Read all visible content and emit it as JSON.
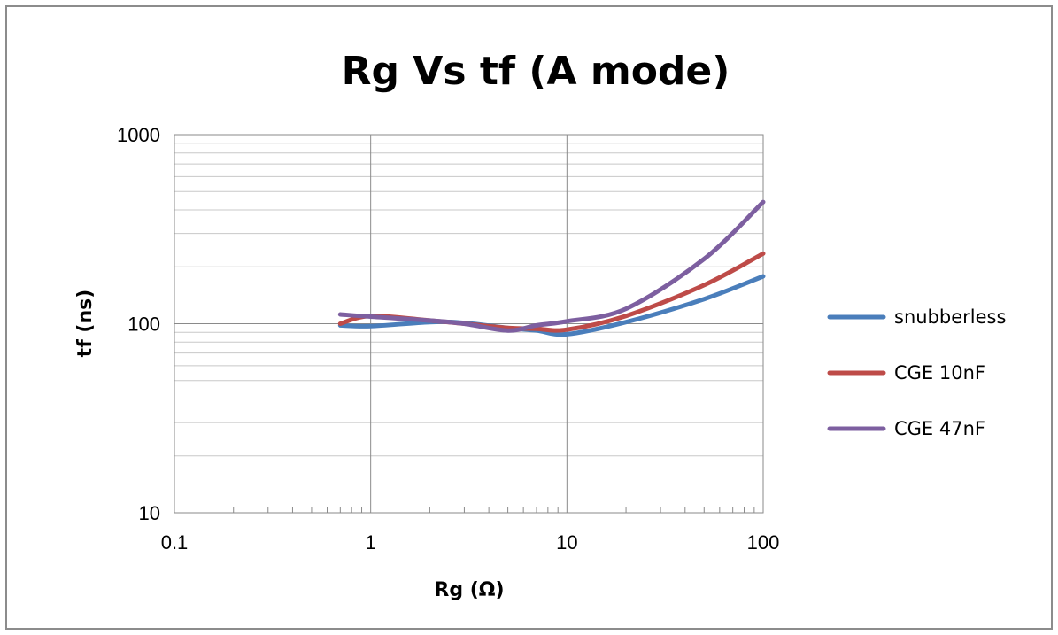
{
  "chart_data": {
    "type": "line",
    "title": "Rg Vs tf (A mode)",
    "xlabel": "Rg (Ω)",
    "ylabel": "tf (ns)",
    "x_scale": "log",
    "y_scale": "log",
    "xlim": [
      0.1,
      100
    ],
    "ylim": [
      10,
      1000
    ],
    "x_ticks": [
      "0.1",
      "1",
      "10",
      "100"
    ],
    "y_ticks": [
      "10",
      "100",
      "1000"
    ],
    "grid": true,
    "legend_position": "right",
    "series": [
      {
        "name": "snubberless",
        "color": "#4a7ebb",
        "points": [
          [
            0.7,
            98
          ],
          [
            1,
            97
          ],
          [
            2,
            102
          ],
          [
            3,
            101
          ],
          [
            5,
            95
          ],
          [
            7,
            92
          ],
          [
            10,
            88
          ],
          [
            20,
            102
          ],
          [
            50,
            135
          ],
          [
            100,
            178
          ]
        ]
      },
      {
        "name": "CGE 10nF",
        "color": "#be4b48",
        "points": [
          [
            0.7,
            100
          ],
          [
            1,
            110
          ],
          [
            2,
            104
          ],
          [
            3,
            100
          ],
          [
            5,
            95
          ],
          [
            7,
            94
          ],
          [
            10,
            93
          ],
          [
            20,
            110
          ],
          [
            50,
            160
          ],
          [
            100,
            235
          ]
        ]
      },
      {
        "name": "CGE 47nF",
        "color": "#7d5fa0",
        "points": [
          [
            0.7,
            112
          ],
          [
            1,
            109
          ],
          [
            2,
            104
          ],
          [
            3,
            100
          ],
          [
            5,
            92
          ],
          [
            7,
            98
          ],
          [
            10,
            103
          ],
          [
            20,
            120
          ],
          [
            50,
            220
          ],
          [
            100,
            440
          ]
        ]
      }
    ]
  }
}
